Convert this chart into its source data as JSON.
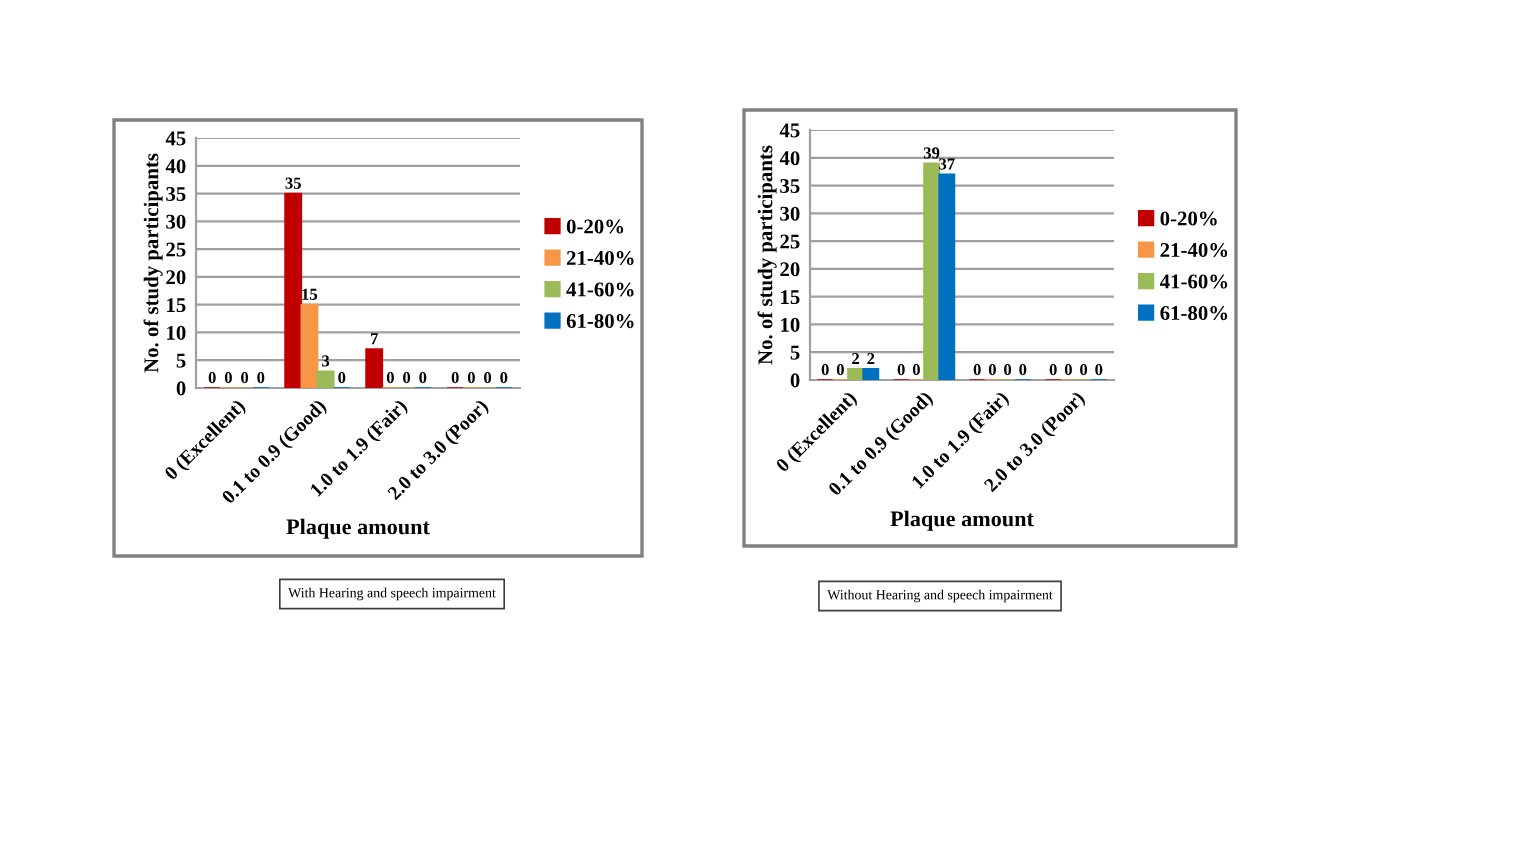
{
  "chart_data": [
    {
      "type": "bar",
      "xlabel": "Plaque amount",
      "ylabel": "No. of study participants",
      "categories": [
        "0 (Excellent)",
        "0.1 to 0.9 (Good)",
        "1.0 to 1.9 (Fair)",
        "2.0 to 3.0 (Poor)"
      ],
      "series": [
        {
          "name": "0-20%",
          "color": "#c00000",
          "values": [
            0,
            35,
            7,
            0
          ]
        },
        {
          "name": "21-40%",
          "color": "#f79646",
          "values": [
            0,
            15,
            0,
            0
          ]
        },
        {
          "name": "41-60%",
          "color": "#9bbb59",
          "values": [
            0,
            3,
            0,
            0
          ]
        },
        {
          "name": "61-80%",
          "color": "#0070c0",
          "values": [
            0,
            0,
            0,
            0
          ]
        }
      ],
      "ylim": [
        0,
        45
      ],
      "yticks": [
        0,
        5,
        10,
        15,
        20,
        25,
        30,
        35,
        40,
        45
      ],
      "grid": "y",
      "legend": "right",
      "data_labels": true,
      "annotations": [
        "With Hearing and speech impairment"
      ]
    },
    {
      "type": "bar",
      "xlabel": "Plaque amount",
      "ylabel": "No. of study participants",
      "categories": [
        "0 (Excellent)",
        "0.1 to 0.9 (Good)",
        "1.0 to 1.9 (Fair)",
        "2.0 to 3.0 (Poor)"
      ],
      "series": [
        {
          "name": "0-20%",
          "color": "#c00000",
          "values": [
            0,
            0,
            0,
            0
          ]
        },
        {
          "name": "21-40%",
          "color": "#f79646",
          "values": [
            0,
            0,
            0,
            0
          ]
        },
        {
          "name": "41-60%",
          "color": "#9bbb59",
          "values": [
            2,
            39,
            0,
            0
          ]
        },
        {
          "name": "61-80%",
          "color": "#0070c0",
          "values": [
            2,
            37,
            0,
            0
          ]
        }
      ],
      "ylim": [
        0,
        45
      ],
      "yticks": [
        0,
        5,
        10,
        15,
        20,
        25,
        30,
        35,
        40,
        45
      ],
      "grid": "y",
      "legend": "right",
      "data_labels": true,
      "annotations": [
        "Without Hearing and speech impairment"
      ]
    }
  ]
}
